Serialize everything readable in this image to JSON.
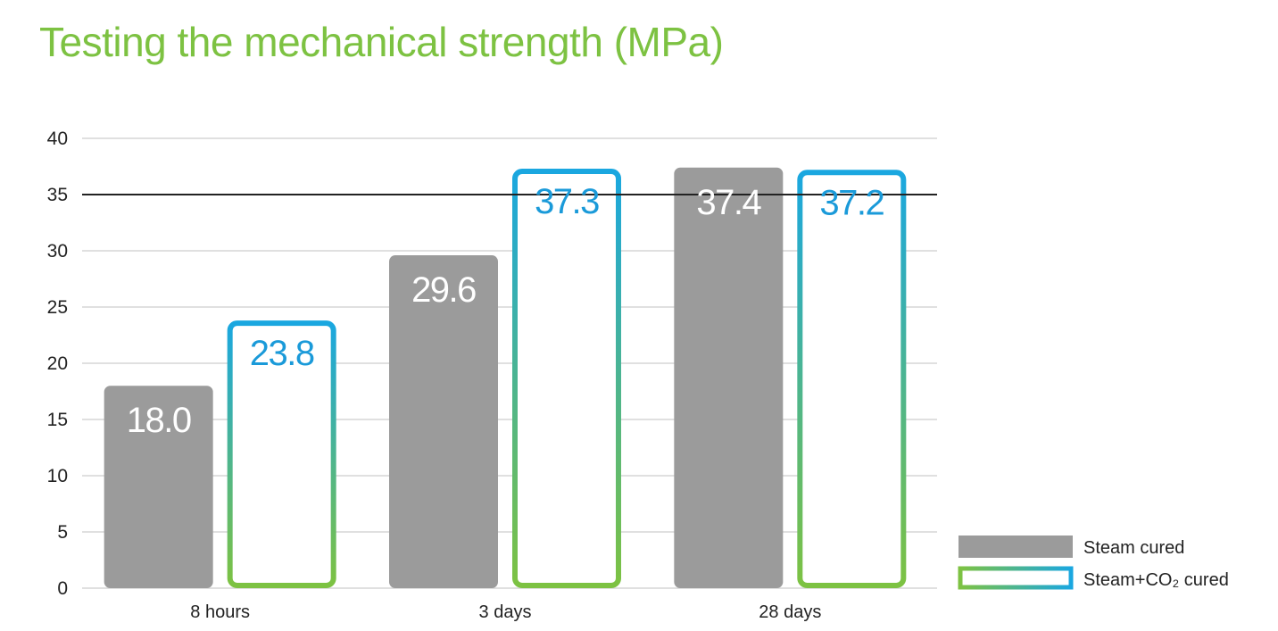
{
  "colors": {
    "title": "#7dc242",
    "steam_bar": "#9b9b9b",
    "co2_label": "#1a9ad9",
    "gradient_bottom": "#7dc242",
    "gradient_top": "#1aa7e0",
    "gridline": "#d6d6d6",
    "reference_line": "#222222",
    "steam_label": "#ffffff"
  },
  "chart_data": {
    "type": "bar",
    "title": "Testing the mechanical strength (MPa)",
    "categories": [
      "8 hours",
      "3 days",
      "28 days"
    ],
    "series": [
      {
        "name": "Steam cured",
        "values": [
          18.0,
          29.6,
          37.4
        ],
        "labels": [
          "18.0",
          "29.6",
          "37.4"
        ],
        "style": "filled-gray"
      },
      {
        "name": "Steam+CO₂ cured",
        "values": [
          23.8,
          37.3,
          37.2
        ],
        "labels": [
          "23.8",
          "37.3",
          "37.2"
        ],
        "style": "gradient-outline"
      }
    ],
    "ylim": [
      0,
      40
    ],
    "yticks": [
      "0",
      "5",
      "10",
      "15",
      "20",
      "25",
      "30",
      "35",
      "40"
    ],
    "reference_line": 35,
    "grid": true,
    "legend": "bottom-right",
    "xlabel": "",
    "ylabel": ""
  }
}
